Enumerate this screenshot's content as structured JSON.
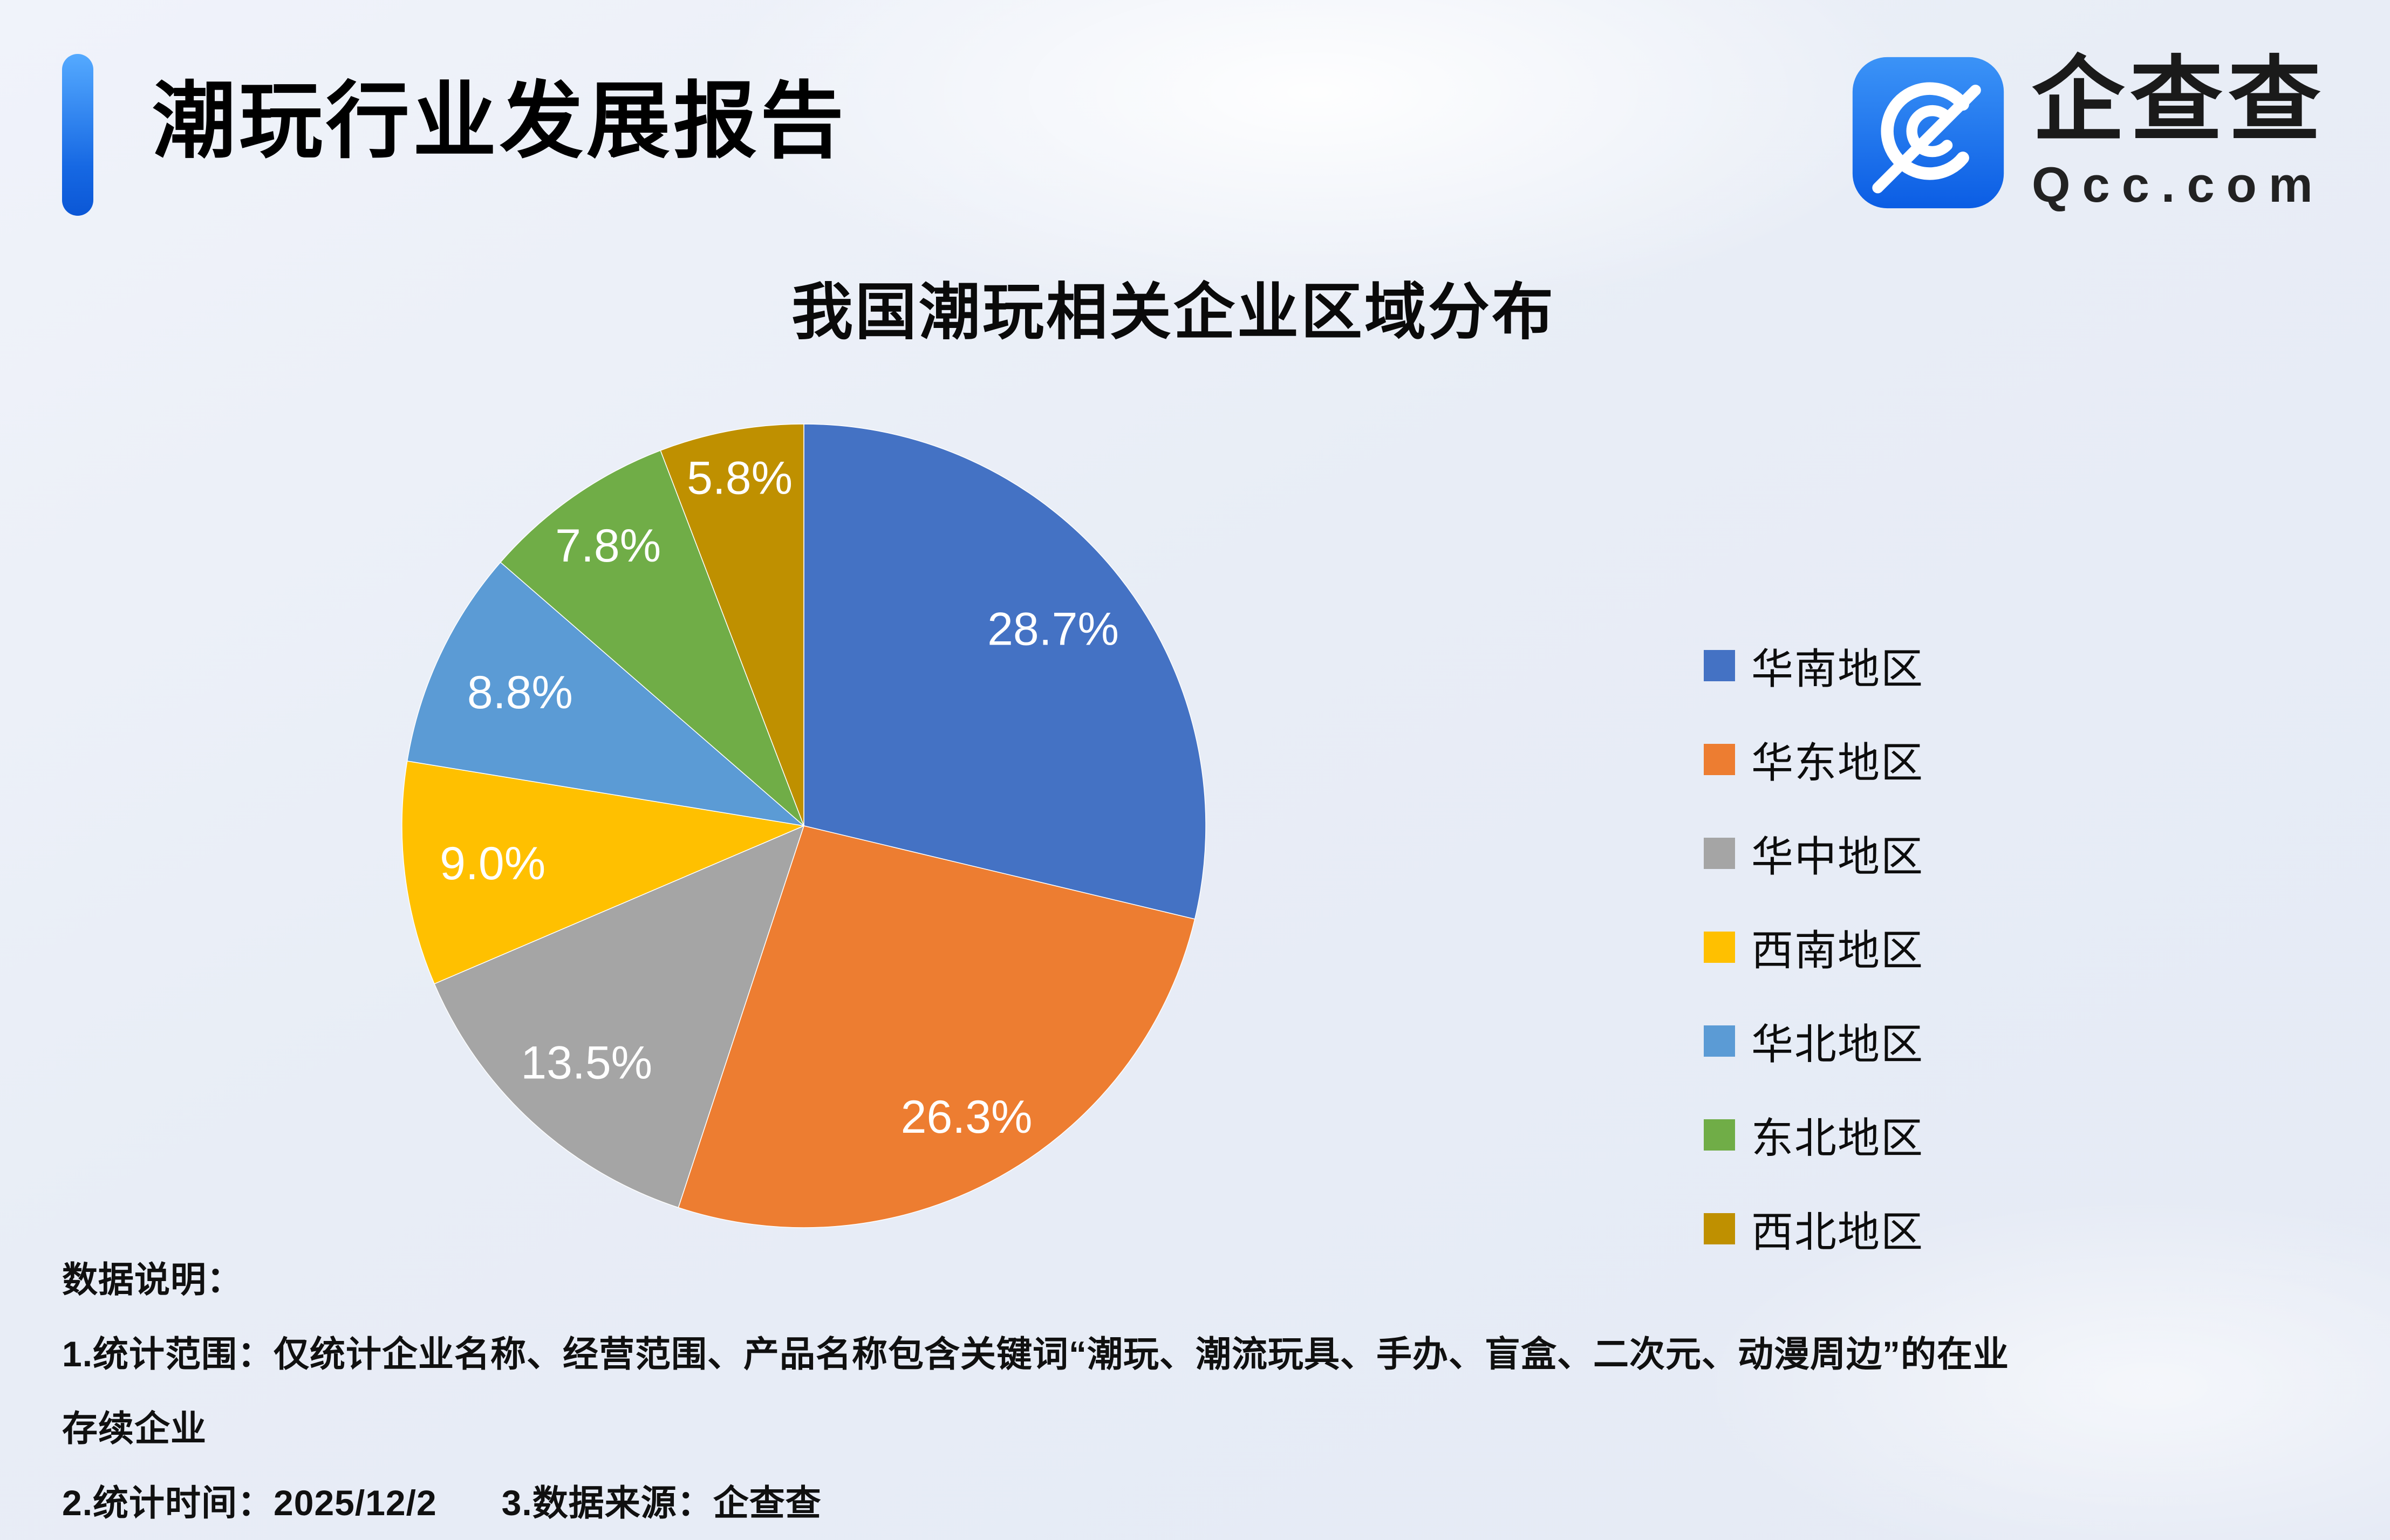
{
  "header": {
    "title": "潮玩行业发展报告",
    "brand_name": "企查查",
    "brand_domain": "Qcc.com",
    "brand_color": "#1273EB"
  },
  "chart_data": {
    "type": "pie",
    "title": "我国潮玩相关企业区域分布",
    "unit": "%",
    "legend_position": "right",
    "start_angle_deg": -90,
    "direction": "clockwise",
    "series": [
      {
        "label": "华南地区",
        "value": 28.7,
        "color": "#4472C4"
      },
      {
        "label": "华东地区",
        "value": 26.3,
        "color": "#ED7D31"
      },
      {
        "label": "华中地区",
        "value": 13.5,
        "color": "#A5A5A5"
      },
      {
        "label": "西南地区",
        "value": 9.0,
        "color": "#FFC000"
      },
      {
        "label": "华北地区",
        "value": 8.8,
        "color": "#5B9BD5"
      },
      {
        "label": "东北地区",
        "value": 7.8,
        "color": "#70AD47"
      },
      {
        "label": "西北地区",
        "value": 5.8,
        "color": "#BF9000"
      }
    ]
  },
  "notes": {
    "heading": "数据说明：",
    "scope_line1": "1.统计范围：仅统计企业名称、经营范围、产品名称包含关键词“潮玩、潮流玩具、手办、盲盒、二次元、动漫周边”的在业",
    "scope_line2": "存续企业",
    "time": "2.统计时间：2025/12/2",
    "source": "3.数据来源：企查查"
  }
}
